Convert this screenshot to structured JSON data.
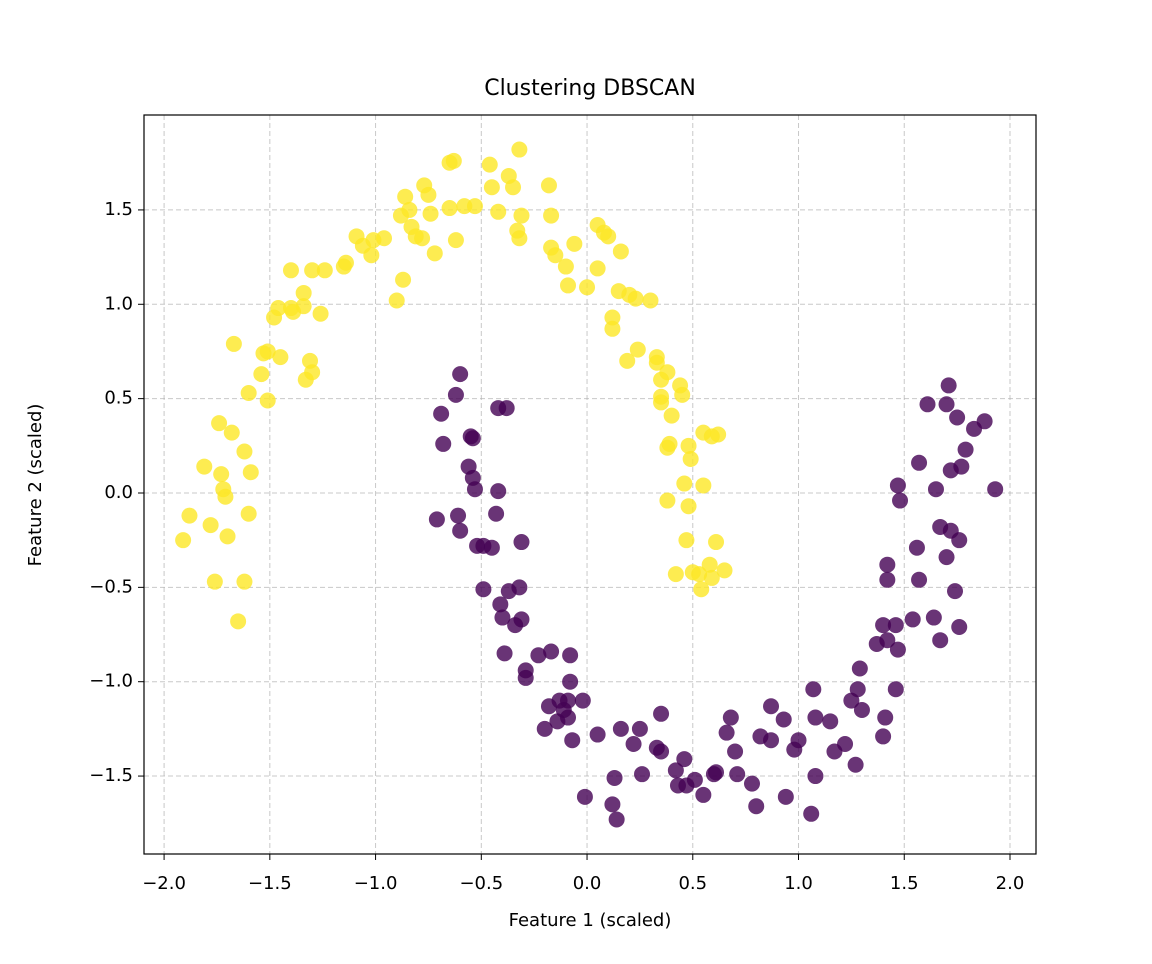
{
  "chart_data": {
    "type": "scatter",
    "title": "Clustering DBSCAN",
    "x_label": "Feature 1 (scaled)",
    "y_label": "Feature 2 (scaled)",
    "xlim": [
      -2.095,
      2.123
    ],
    "ylim": [
      -1.913,
      2.003
    ],
    "xticks": [
      {
        "value": -2,
        "label": "−2.0"
      },
      {
        "value": -1.5,
        "label": "−1.5"
      },
      {
        "value": -1,
        "label": "−1.0"
      },
      {
        "value": -0.5,
        "label": "−0.5"
      },
      {
        "value": 0,
        "label": "0.0"
      },
      {
        "value": 0.5,
        "label": "0.5"
      },
      {
        "value": 1,
        "label": "1.0"
      },
      {
        "value": 1.5,
        "label": "1.5"
      },
      {
        "value": 2,
        "label": "2.0"
      }
    ],
    "yticks": [
      {
        "value": -1.5,
        "label": "−1.5"
      },
      {
        "value": -1,
        "label": "−1.0"
      },
      {
        "value": -0.5,
        "label": "−0.5"
      },
      {
        "value": 0,
        "label": "0.0"
      },
      {
        "value": 0.5,
        "label": "0.5"
      },
      {
        "value": 1,
        "label": "1.0"
      },
      {
        "value": 1.5,
        "label": "1.5"
      }
    ],
    "grid": true,
    "series": [
      {
        "color": "#fde725",
        "x": [
          -1.91,
          -1.88,
          -1.81,
          -1.78,
          -1.76,
          -1.74,
          -1.73,
          -1.72,
          -1.71,
          -1.7,
          -1.68,
          -1.67,
          -1.65,
          -1.62,
          -1.62,
          -1.6,
          -1.6,
          -1.59,
          -1.54,
          -1.53,
          -1.51,
          -1.51,
          -1.48,
          -1.46,
          -1.45,
          -1.4,
          -1.4,
          -1.39,
          -1.34,
          -1.34,
          -1.33,
          -1.31,
          -1.3,
          -1.3,
          -1.26,
          -1.24,
          -1.15,
          -1.14,
          -1.09,
          -1.06,
          -1.02,
          -1.01,
          -0.96,
          -0.9,
          -0.87,
          -0.88,
          -0.86,
          -0.84,
          -0.83,
          -0.81,
          -0.78,
          -0.77,
          -0.75,
          -0.74,
          -0.72,
          -0.65,
          -0.63,
          -0.65,
          -0.62,
          -0.58,
          -0.53,
          -0.46,
          -0.45,
          -0.42,
          -0.37,
          -0.35,
          -0.32,
          -0.33,
          -0.32,
          -0.31,
          -0.18,
          -0.17,
          -0.17,
          -0.15,
          -0.1,
          -0.09,
          -0.06,
          0.0,
          0.05,
          0.05,
          0.08,
          0.1,
          0.12,
          0.12,
          0.15,
          0.16,
          0.19,
          0.2,
          0.23,
          0.24,
          0.3,
          0.33,
          0.33,
          0.35,
          0.35,
          0.35,
          0.38,
          0.4,
          0.39,
          0.38,
          0.44,
          0.45,
          0.46,
          0.48,
          0.47,
          0.48,
          0.49,
          0.42,
          0.5,
          0.53,
          0.54,
          0.58,
          0.59,
          0.61,
          0.65,
          0.55,
          0.59,
          0.62,
          0.55,
          0.38
        ],
        "y": [
          -0.25,
          -0.12,
          0.14,
          -0.17,
          -0.47,
          0.37,
          0.1,
          0.02,
          -0.02,
          -0.23,
          0.32,
          0.79,
          -0.68,
          0.22,
          -0.47,
          0.53,
          -0.11,
          0.11,
          0.63,
          0.74,
          0.49,
          0.75,
          0.93,
          0.98,
          0.72,
          0.98,
          1.18,
          0.96,
          1.06,
          0.99,
          0.6,
          0.7,
          0.64,
          1.18,
          0.95,
          1.18,
          1.2,
          1.22,
          1.36,
          1.31,
          1.26,
          1.34,
          1.35,
          1.02,
          1.13,
          1.47,
          1.57,
          1.5,
          1.41,
          1.36,
          1.35,
          1.63,
          1.58,
          1.48,
          1.27,
          1.75,
          1.76,
          1.51,
          1.34,
          1.52,
          1.52,
          1.74,
          1.62,
          1.49,
          1.68,
          1.62,
          1.82,
          1.39,
          1.35,
          1.47,
          1.63,
          1.47,
          1.3,
          1.26,
          1.2,
          1.1,
          1.32,
          1.09,
          1.19,
          1.42,
          1.38,
          1.36,
          0.93,
          0.87,
          1.07,
          1.28,
          0.7,
          1.05,
          1.03,
          0.76,
          1.02,
          0.69,
          0.72,
          0.6,
          0.51,
          0.48,
          0.64,
          0.41,
          0.26,
          0.24,
          0.57,
          0.52,
          0.05,
          -0.07,
          -0.25,
          0.25,
          0.18,
          -0.43,
          -0.42,
          -0.43,
          -0.51,
          -0.38,
          -0.45,
          -0.26,
          -0.41,
          0.32,
          0.3,
          0.31,
          0.04,
          -0.04
        ]
      },
      {
        "color": "#440154",
        "x": [
          -0.69,
          -0.6,
          -0.62,
          -0.68,
          -0.71,
          -0.61,
          -0.6,
          -0.55,
          -0.54,
          -0.56,
          -0.54,
          -0.53,
          -0.52,
          -0.49,
          -0.45,
          -0.43,
          -0.42,
          -0.38,
          -0.42,
          -0.49,
          -0.41,
          -0.4,
          -0.39,
          -0.37,
          -0.34,
          -0.32,
          -0.31,
          -0.29,
          -0.29,
          -0.31,
          -0.23,
          -0.2,
          -0.17,
          -0.18,
          -0.14,
          -0.13,
          -0.11,
          -0.09,
          -0.08,
          -0.08,
          -0.07,
          -0.09,
          -0.02,
          -0.01,
          0.05,
          0.12,
          0.14,
          0.16,
          0.13,
          0.22,
          0.25,
          0.26,
          0.33,
          0.35,
          0.35,
          0.42,
          0.43,
          0.46,
          0.47,
          0.51,
          0.55,
          0.6,
          0.61,
          0.66,
          0.68,
          0.7,
          0.71,
          0.78,
          0.8,
          0.82,
          0.87,
          0.87,
          0.93,
          0.94,
          0.98,
          1.0,
          1.06,
          1.07,
          1.08,
          1.08,
          1.15,
          1.17,
          1.22,
          1.27,
          1.29,
          1.25,
          1.3,
          1.28,
          1.37,
          1.4,
          1.42,
          1.46,
          1.47,
          1.41,
          1.4,
          1.42,
          1.42,
          1.46,
          1.47,
          1.48,
          1.54,
          1.56,
          1.57,
          1.57,
          1.61,
          1.65,
          1.64,
          1.67,
          1.67,
          1.7,
          1.71,
          1.72,
          1.7,
          1.72,
          1.74,
          1.75,
          1.76,
          1.77,
          1.76,
          1.79,
          1.83,
          1.88,
          1.93
        ],
        "y": [
          0.42,
          0.63,
          0.52,
          0.26,
          -0.14,
          -0.12,
          -0.2,
          0.3,
          0.29,
          0.14,
          0.08,
          0.02,
          -0.28,
          -0.28,
          -0.29,
          -0.11,
          0.45,
          0.45,
          0.01,
          -0.51,
          -0.59,
          -0.66,
          -0.85,
          -0.52,
          -0.7,
          -0.5,
          -0.67,
          -0.94,
          -0.98,
          -0.26,
          -0.86,
          -1.25,
          -0.84,
          -1.13,
          -1.21,
          -1.1,
          -1.15,
          -1.1,
          -0.86,
          -1.0,
          -1.31,
          -1.19,
          -1.1,
          -1.61,
          -1.28,
          -1.65,
          -1.73,
          -1.25,
          -1.51,
          -1.33,
          -1.25,
          -1.49,
          -1.35,
          -1.17,
          -1.37,
          -1.47,
          -1.55,
          -1.41,
          -1.55,
          -1.52,
          -1.6,
          -1.49,
          -1.48,
          -1.27,
          -1.19,
          -1.37,
          -1.49,
          -1.54,
          -1.66,
          -1.29,
          -1.13,
          -1.31,
          -1.2,
          -1.61,
          -1.36,
          -1.31,
          -1.7,
          -1.04,
          -1.19,
          -1.5,
          -1.21,
          -1.37,
          -1.33,
          -1.44,
          -0.93,
          -1.1,
          -1.15,
          -1.04,
          -0.8,
          -0.7,
          -0.78,
          -0.7,
          -0.83,
          -1.19,
          -1.29,
          -0.46,
          -0.38,
          -1.04,
          0.04,
          -0.04,
          -0.67,
          -0.29,
          -0.46,
          0.16,
          0.47,
          0.02,
          -0.66,
          -0.78,
          -0.18,
          0.47,
          0.57,
          0.12,
          -0.34,
          -0.2,
          -0.52,
          0.4,
          -0.25,
          0.14,
          -0.71,
          0.23,
          0.34,
          0.38,
          0.02
        ]
      }
    ]
  }
}
